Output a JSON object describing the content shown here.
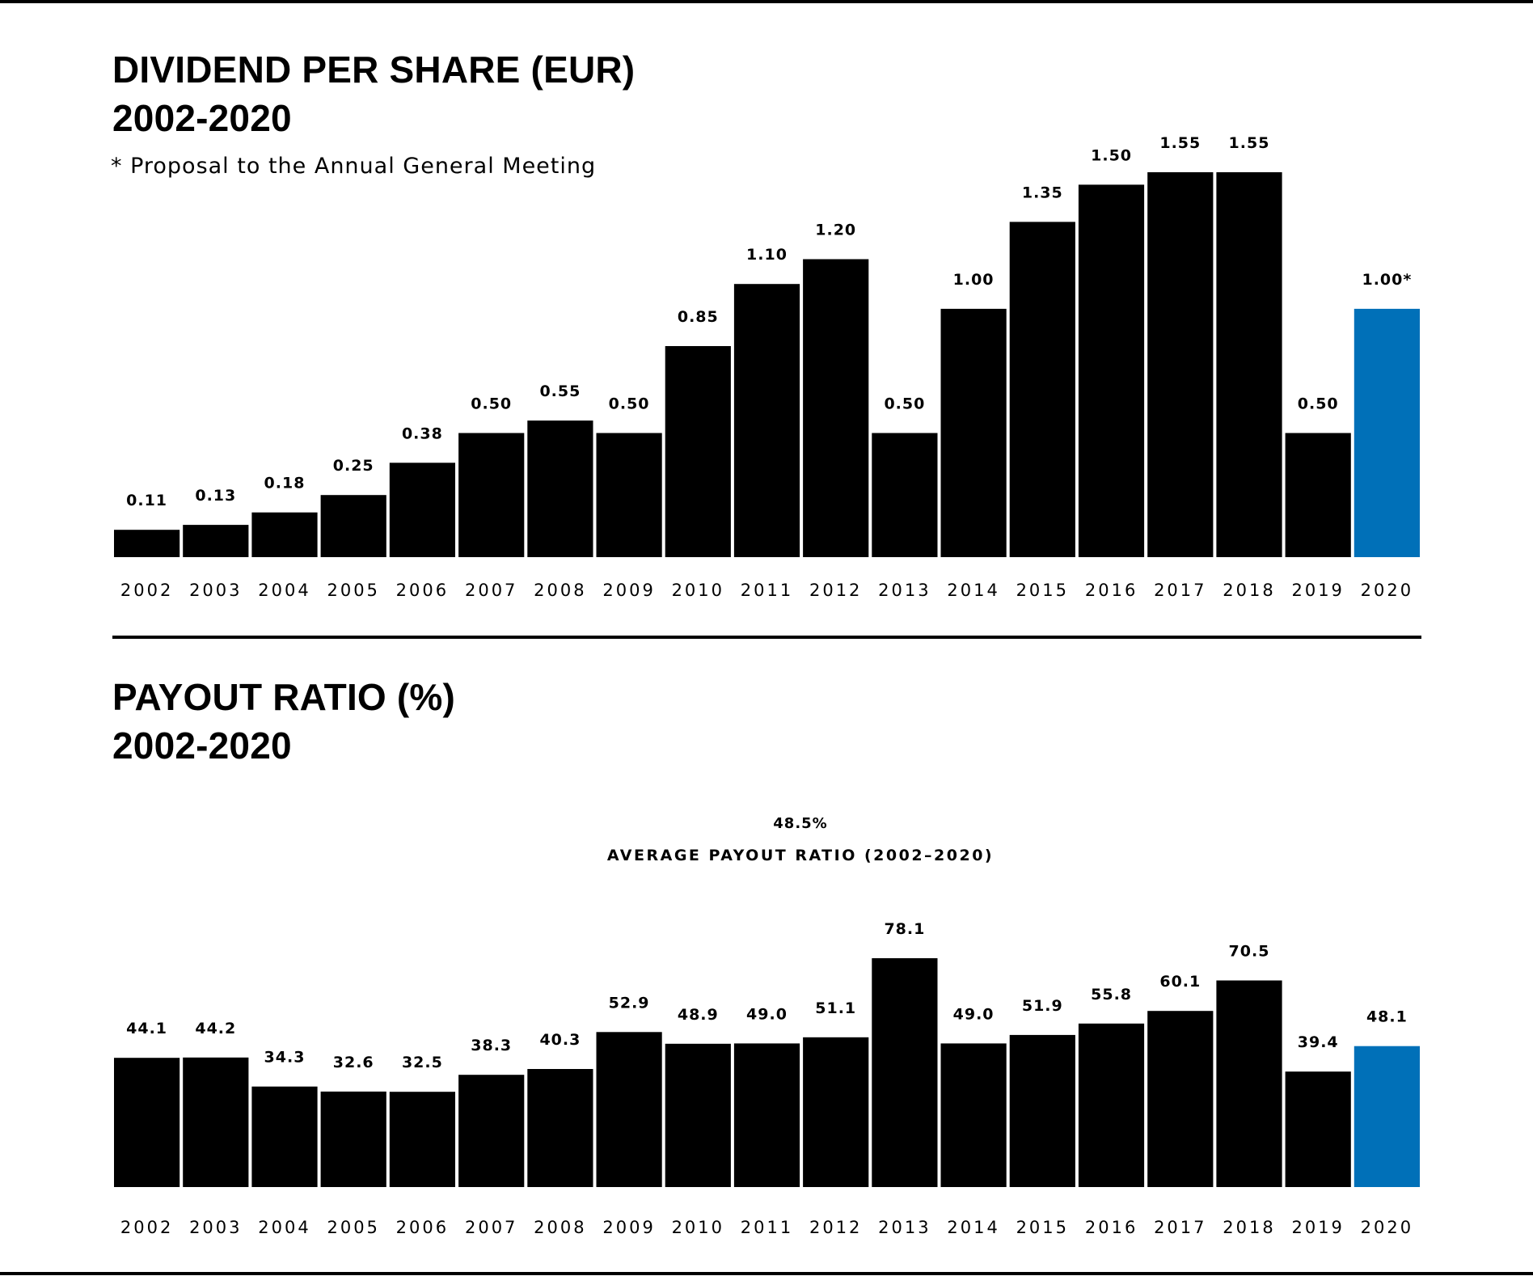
{
  "colors": {
    "bar": "#000000",
    "highlight": "#0070B8",
    "background": "#ffffff"
  },
  "chart_data": [
    {
      "type": "bar",
      "title": "DIVIDEND PER SHARE (EUR)",
      "subtitle": "2002-2020",
      "note": "* Proposal to the Annual General Meeting",
      "categories": [
        "2002",
        "2003",
        "2004",
        "2005",
        "2006",
        "2007",
        "2008",
        "2009",
        "2010",
        "2011",
        "2012",
        "2013",
        "2014",
        "2015",
        "2016",
        "2017",
        "2018",
        "2019",
        "2020"
      ],
      "values": [
        0.11,
        0.13,
        0.18,
        0.25,
        0.38,
        0.5,
        0.55,
        0.5,
        0.85,
        1.1,
        1.2,
        0.5,
        1.0,
        1.35,
        1.5,
        1.55,
        1.55,
        0.5,
        1.0
      ],
      "labels": [
        "0.11",
        "0.13",
        "0.18",
        "0.25",
        "0.38",
        "0.50",
        "0.55",
        "0.50",
        "0.85",
        "1.10",
        "1.20",
        "0.50",
        "1.00",
        "1.35",
        "1.50",
        "1.55",
        "1.55",
        "0.50",
        "1.00*"
      ],
      "highlight_index": 18,
      "ylim": [
        0,
        1.55
      ],
      "grid": false,
      "xlabel": "",
      "ylabel": ""
    },
    {
      "type": "bar",
      "title": "PAYOUT RATIO (%)",
      "subtitle": "2002-2020",
      "average_value": "48.5%",
      "average_label": "AVERAGE PAYOUT RATIO (2002–2020)",
      "categories": [
        "2002",
        "2003",
        "2004",
        "2005",
        "2006",
        "2007",
        "2008",
        "2009",
        "2010",
        "2011",
        "2012",
        "2013",
        "2014",
        "2015",
        "2016",
        "2017",
        "2018",
        "2019",
        "2020"
      ],
      "values": [
        44.1,
        44.2,
        34.3,
        32.6,
        32.5,
        38.3,
        40.3,
        52.9,
        48.9,
        49.0,
        51.1,
        78.1,
        49.0,
        51.9,
        55.8,
        60.1,
        70.5,
        39.4,
        48.1
      ],
      "labels": [
        "44.1",
        "44.2",
        "34.3",
        "32.6",
        "32.5",
        "38.3",
        "40.3",
        "52.9",
        "48.9",
        "49.0",
        "51.1",
        "78.1",
        "49.0",
        "51.9",
        "55.8",
        "60.1",
        "70.5",
        "39.4",
        "48.1"
      ],
      "highlight_index": 18,
      "ylim": [
        0,
        78.1
      ],
      "grid": false,
      "xlabel": "",
      "ylabel": ""
    }
  ]
}
